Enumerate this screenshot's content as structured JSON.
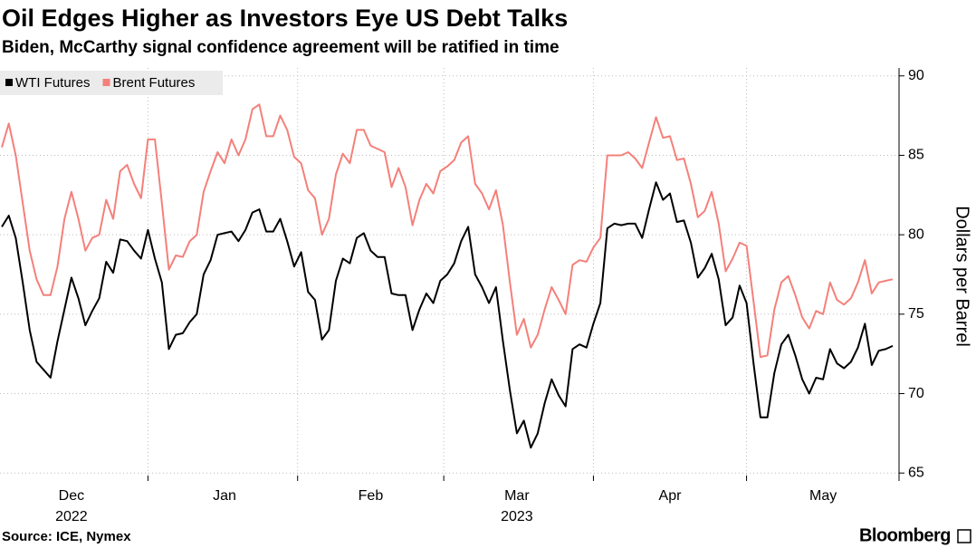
{
  "chart_data": {
    "type": "line",
    "title": "Oil Edges Higher as Investors Eye US Debt Talks",
    "subtitle": "Biden, McCarthy signal confidence agreement will be ratified in time",
    "source": "Source: ICE, Nymex",
    "brand": "Bloomberg",
    "y_axis_label": "Dollars per Barrel",
    "categories": [
      null,
      null,
      null,
      null,
      null,
      null,
      null,
      null,
      null,
      null,
      "Dec",
      null,
      null,
      null,
      null,
      null,
      null,
      null,
      null,
      null,
      null,
      null,
      null,
      null,
      null,
      null,
      null,
      null,
      null,
      null,
      null,
      null,
      "Jan",
      null,
      null,
      null,
      null,
      null,
      null,
      null,
      null,
      null,
      null,
      null,
      null,
      null,
      null,
      null,
      null,
      null,
      null,
      null,
      null,
      "Feb",
      null,
      null,
      null,
      null,
      null,
      null,
      null,
      null,
      null,
      null,
      null,
      null,
      null,
      null,
      null,
      null,
      null,
      null,
      null,
      null,
      "Mar",
      null,
      null,
      null,
      null,
      null,
      null,
      null,
      null,
      null,
      null,
      null,
      null,
      null,
      null,
      null,
      null,
      null,
      null,
      null,
      null,
      null,
      "Apr",
      null,
      null,
      null,
      null,
      null,
      null,
      null,
      null,
      null,
      null,
      null,
      null,
      null,
      null,
      null,
      null,
      null,
      null,
      null,
      null,
      null,
      "May",
      null,
      null,
      null,
      null,
      null,
      null,
      null,
      null,
      null,
      null
    ],
    "years": [
      null,
      null,
      null,
      null,
      null,
      null,
      null,
      null,
      null,
      null,
      "2022",
      null,
      null,
      null,
      null,
      null,
      null,
      null,
      null,
      null,
      null,
      null,
      null,
      null,
      null,
      null,
      null,
      null,
      null,
      null,
      null,
      null,
      null,
      null,
      null,
      null,
      null,
      null,
      null,
      null,
      null,
      null,
      null,
      null,
      null,
      null,
      null,
      null,
      null,
      null,
      null,
      null,
      null,
      null,
      null,
      null,
      null,
      null,
      null,
      null,
      null,
      null,
      null,
      null,
      null,
      null,
      null,
      null,
      null,
      null,
      null,
      null,
      null,
      null,
      "2023",
      null,
      null,
      null,
      null,
      null,
      null,
      null,
      null,
      null,
      null,
      null,
      null,
      null,
      null,
      null,
      null,
      null,
      null,
      null,
      null,
      null,
      null,
      null,
      null,
      null,
      null,
      null,
      null,
      null,
      null,
      null,
      null,
      null,
      null,
      null,
      null,
      null,
      null,
      null,
      null,
      null,
      null,
      null,
      null,
      null,
      null,
      null,
      null,
      null,
      null,
      null,
      null,
      null
    ],
    "series": [
      {
        "name": "WTI Futures",
        "color": "#000000",
        "values": [
          80.5,
          81.2,
          79.8,
          77,
          74,
          72,
          71.5,
          71,
          73.3,
          75.3,
          77.3,
          76,
          74.3,
          75.2,
          76,
          78.3,
          77.6,
          79.7,
          79.6,
          79,
          78.5,
          80.3,
          78.5,
          77,
          72.8,
          73.7,
          73.8,
          74.5,
          75,
          77.5,
          78.4,
          80,
          80.1,
          80.2,
          79.6,
          80.3,
          81.4,
          81.6,
          80.2,
          80.2,
          81,
          79.6,
          78,
          78.9,
          76.4,
          75.9,
          73.4,
          74,
          77.1,
          78.5,
          78.2,
          79.8,
          80.1,
          79,
          78.6,
          78.6,
          76.3,
          76.2,
          76.2,
          74,
          75.3,
          76.3,
          75.7,
          77.1,
          77.5,
          78.2,
          79.6,
          80.5,
          77.5,
          76.7,
          75.7,
          76.7,
          73.3,
          70.2,
          67.5,
          68.3,
          66.6,
          67.5,
          69.4,
          70.9,
          69.9,
          69.2,
          72.8,
          73.1,
          72.9,
          74.4,
          75.7,
          80.4,
          80.7,
          80.6,
          80.7,
          80.7,
          79.8,
          81.6,
          83.3,
          82.2,
          82.6,
          80.8,
          80.9,
          79.5,
          77.3,
          77.9,
          78.8,
          77.2,
          74.3,
          74.8,
          76.8,
          75.7,
          71.9,
          68.5,
          68.5,
          71.3,
          73.1,
          73.7,
          72.4,
          70.9,
          70,
          71,
          70.9,
          72.8,
          71.9,
          71.6,
          72,
          72.9,
          74.4,
          71.8,
          72.7,
          72.8,
          73
        ]
      },
      {
        "name": "Brent Futures",
        "color": "#f4807a",
        "values": [
          85.5,
          87,
          85,
          82,
          79,
          77.2,
          76.2,
          76.2,
          78,
          81,
          82.7,
          81,
          79,
          79.8,
          80,
          82.2,
          81,
          84,
          84.4,
          83.2,
          82.3,
          86,
          86,
          82,
          77.8,
          78.7,
          78.6,
          79.6,
          80,
          82.7,
          84,
          85.2,
          84.5,
          86,
          85,
          86,
          87.9,
          88.2,
          86.2,
          86.2,
          87.5,
          86.6,
          84.9,
          84.5,
          82.8,
          82.3,
          80,
          81,
          83.8,
          85.1,
          84.5,
          86.6,
          86.6,
          85.6,
          85.4,
          85.2,
          83,
          84.2,
          83,
          80.6,
          82.2,
          83.2,
          82.6,
          84,
          84.3,
          84.7,
          85.8,
          86.2,
          83.2,
          82.6,
          81.6,
          82.8,
          80.6,
          77,
          73.7,
          74.7,
          72.9,
          73.7,
          75.3,
          76.7,
          75.9,
          75,
          78.1,
          78.4,
          78.3,
          79.2,
          79.8,
          85,
          85,
          85,
          85.2,
          84.8,
          84.2,
          85.8,
          87.4,
          86.1,
          86.2,
          84.7,
          84.8,
          83.2,
          81.1,
          81.5,
          82.7,
          80.7,
          77.7,
          78.5,
          79.5,
          79.3,
          75.8,
          72.3,
          72.4,
          75.3,
          77,
          77.4,
          76.2,
          74.8,
          74.1,
          75.2,
          75,
          77,
          75.9,
          75.6,
          76,
          77,
          78.4,
          76.3,
          77,
          77.1,
          77.2
        ]
      }
    ],
    "ylim": [
      64.5,
      90.5
    ],
    "yticks": [
      65,
      70,
      75,
      80,
      85,
      90
    ],
    "grid": true,
    "legend": "top-left"
  }
}
